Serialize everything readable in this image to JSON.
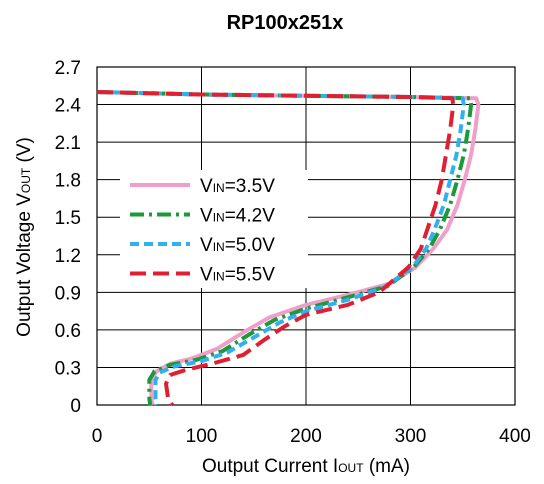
{
  "chart_data": {
    "type": "line",
    "title": "RP100x251x",
    "xlabel": {
      "main": "Output Current I",
      "sub": "OUT",
      "unit": " (mA)"
    },
    "ylabel": {
      "main": "Output Voltage V",
      "sub": "OUT",
      "unit": " (V)"
    },
    "xlim": [
      0,
      400
    ],
    "ylim": [
      0,
      2.7
    ],
    "xticks": [
      "0",
      "100",
      "200",
      "300",
      "400"
    ],
    "yticks": [
      "0",
      "0.3",
      "0.6",
      "0.9",
      "1.2",
      "1.5",
      "1.8",
      "2.1",
      "2.4",
      "2.7"
    ],
    "grid": true,
    "legend_position": "center-left",
    "series": [
      {
        "name": {
          "prefix": "V",
          "sub": "IN",
          "suffix": "=3.5V"
        },
        "color": "#f0a0c8",
        "dash": "solid",
        "points": [
          [
            0,
            2.5
          ],
          [
            100,
            2.48
          ],
          [
            200,
            2.47
          ],
          [
            300,
            2.46
          ],
          [
            363,
            2.45
          ],
          [
            365,
            2.4
          ],
          [
            362,
            2.2
          ],
          [
            358,
            2.0
          ],
          [
            352,
            1.8
          ],
          [
            345,
            1.6
          ],
          [
            335,
            1.4
          ],
          [
            322,
            1.25
          ],
          [
            305,
            1.1
          ],
          [
            280,
            0.97
          ],
          [
            240,
            0.88
          ],
          [
            200,
            0.8
          ],
          [
            165,
            0.7
          ],
          [
            140,
            0.58
          ],
          [
            115,
            0.45
          ],
          [
            90,
            0.37
          ],
          [
            70,
            0.33
          ],
          [
            57,
            0.27
          ],
          [
            52,
            0.2
          ],
          [
            52,
            0.05
          ],
          [
            53,
            0
          ]
        ]
      },
      {
        "name": {
          "prefix": "V",
          "sub": "IN",
          "suffix": "=4.2V"
        },
        "color": "#1a9a3a",
        "dash": "dashdot",
        "points": [
          [
            0,
            2.5
          ],
          [
            100,
            2.48
          ],
          [
            200,
            2.47
          ],
          [
            300,
            2.46
          ],
          [
            357,
            2.45
          ],
          [
            358,
            2.4
          ],
          [
            355,
            2.2
          ],
          [
            351,
            2.0
          ],
          [
            345,
            1.8
          ],
          [
            338,
            1.6
          ],
          [
            328,
            1.4
          ],
          [
            318,
            1.25
          ],
          [
            303,
            1.1
          ],
          [
            278,
            0.95
          ],
          [
            240,
            0.86
          ],
          [
            200,
            0.77
          ],
          [
            170,
            0.68
          ],
          [
            145,
            0.56
          ],
          [
            120,
            0.43
          ],
          [
            95,
            0.36
          ],
          [
            70,
            0.32
          ],
          [
            55,
            0.27
          ],
          [
            50,
            0.2
          ],
          [
            50,
            0.05
          ],
          [
            51,
            0
          ]
        ]
      },
      {
        "name": {
          "prefix": "V",
          "sub": "IN",
          "suffix": "=5.0V"
        },
        "color": "#30b0f0",
        "dash": "dashed",
        "points": [
          [
            0,
            2.5
          ],
          [
            100,
            2.48
          ],
          [
            200,
            2.47
          ],
          [
            300,
            2.46
          ],
          [
            350,
            2.45
          ],
          [
            351,
            2.4
          ],
          [
            348,
            2.2
          ],
          [
            344,
            2.0
          ],
          [
            338,
            1.8
          ],
          [
            332,
            1.6
          ],
          [
            323,
            1.4
          ],
          [
            315,
            1.25
          ],
          [
            302,
            1.1
          ],
          [
            275,
            0.94
          ],
          [
            240,
            0.84
          ],
          [
            200,
            0.75
          ],
          [
            175,
            0.66
          ],
          [
            150,
            0.54
          ],
          [
            125,
            0.42
          ],
          [
            100,
            0.35
          ],
          [
            75,
            0.31
          ],
          [
            60,
            0.26
          ],
          [
            56,
            0.2
          ],
          [
            56,
            0.05
          ],
          [
            57,
            0
          ]
        ]
      },
      {
        "name": {
          "prefix": "V",
          "sub": "IN",
          "suffix": "=5.5V"
        },
        "color": "#e02030",
        "dash": "longdash",
        "points": [
          [
            0,
            2.5
          ],
          [
            100,
            2.48
          ],
          [
            200,
            2.47
          ],
          [
            300,
            2.46
          ],
          [
            340,
            2.45
          ],
          [
            341,
            2.4
          ],
          [
            338,
            2.2
          ],
          [
            334,
            2.0
          ],
          [
            330,
            1.8
          ],
          [
            324,
            1.6
          ],
          [
            316,
            1.4
          ],
          [
            310,
            1.25
          ],
          [
            298,
            1.1
          ],
          [
            270,
            0.9
          ],
          [
            240,
            0.8
          ],
          [
            200,
            0.72
          ],
          [
            180,
            0.63
          ],
          [
            160,
            0.52
          ],
          [
            140,
            0.4
          ],
          [
            110,
            0.33
          ],
          [
            85,
            0.28
          ],
          [
            70,
            0.24
          ],
          [
            66,
            0.17
          ],
          [
            68,
            0.05
          ],
          [
            72,
            0
          ]
        ]
      }
    ]
  }
}
